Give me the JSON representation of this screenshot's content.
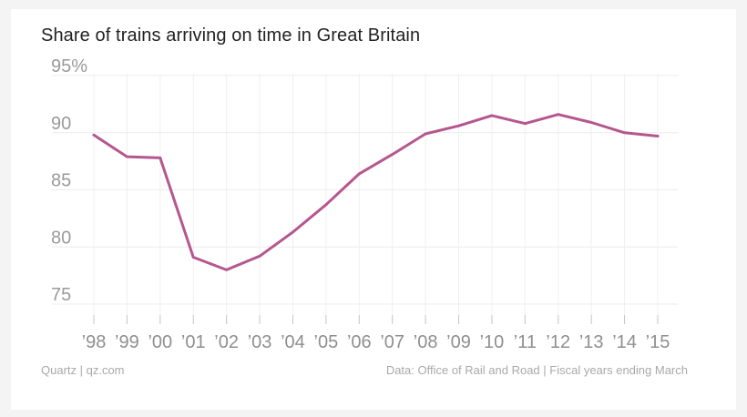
{
  "chart_data": {
    "type": "line",
    "title": "Share of trains arriving on time in Great Britain",
    "xlabel": "",
    "ylabel": "",
    "categories": [
      "’98",
      "’99",
      "’00",
      "’01",
      "’02",
      "’03",
      "’04",
      "’05",
      "’06",
      "’07",
      "’08",
      "’09",
      "’10",
      "’11",
      "’12",
      "’13",
      "’14",
      "’15"
    ],
    "y_ticks": [
      75,
      80,
      85,
      90,
      95
    ],
    "y_tick_labels": [
      "75",
      "80",
      "85",
      "90",
      "95%"
    ],
    "ylim": [
      74,
      96
    ],
    "grid": true,
    "series": [
      {
        "name": "Share of trains arriving on time",
        "color": "#b5578f",
        "x": [
          1998,
          1999,
          2000,
          2001,
          2002,
          2003,
          2004,
          2005,
          2006,
          2007,
          2008,
          2009,
          2010,
          2011,
          2012,
          2013,
          2014,
          2015
        ],
        "values": [
          89.8,
          87.9,
          87.8,
          79.1,
          78.0,
          79.2,
          81.3,
          83.7,
          86.4,
          88.1,
          89.9,
          90.6,
          91.5,
          90.8,
          91.6,
          90.9,
          90.0,
          89.7
        ]
      }
    ]
  },
  "footer": {
    "source_left": "Quartz | qz.com",
    "source_right": "Data: Office of Rail and Road | Fiscal years ending March"
  }
}
